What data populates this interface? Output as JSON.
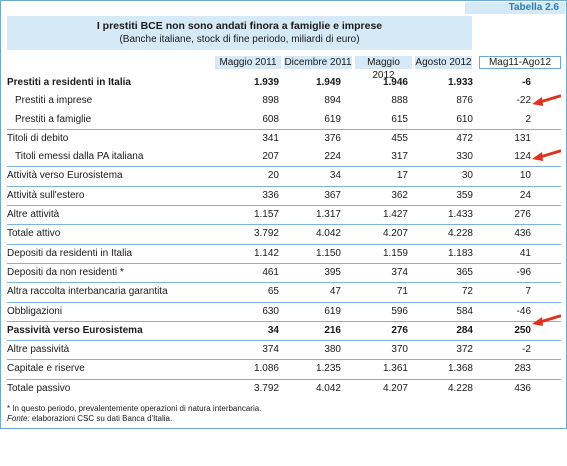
{
  "tag": "Tabella 2.6",
  "title": "I prestiti BCE non sono andati finora a famiglie e imprese",
  "subtitle": "(Banche italiane, stock di fine periodo, miliardi di euro)",
  "columns": [
    "Maggio 2011",
    "Dicembre 2011",
    "Maggio 2012",
    "Agosto 2012",
    "Mag11-Ago12"
  ],
  "rows": [
    {
      "label": "Prestiti a residenti in Italia",
      "v": [
        "1.939",
        "1.949",
        "1.946",
        "1.933",
        "-6"
      ],
      "bold": true,
      "indent": false,
      "sep": false
    },
    {
      "label": "Prestiti a imprese",
      "v": [
        "898",
        "894",
        "888",
        "876",
        "-22"
      ],
      "bold": false,
      "indent": true,
      "sep": false
    },
    {
      "label": "Prestiti a famiglie",
      "v": [
        "608",
        "619",
        "615",
        "610",
        "2"
      ],
      "bold": false,
      "indent": true,
      "sep": false
    },
    {
      "label": "Titoli di debito",
      "v": [
        "341",
        "376",
        "455",
        "472",
        "131"
      ],
      "bold": false,
      "indent": false,
      "sep": true
    },
    {
      "label": "Titoli emessi dalla PA italiana",
      "v": [
        "207",
        "224",
        "317",
        "330",
        "124"
      ],
      "bold": false,
      "indent": true,
      "sep": false
    },
    {
      "label": "Attività verso Eurosistema",
      "v": [
        "20",
        "34",
        "17",
        "30",
        "10"
      ],
      "bold": false,
      "indent": false,
      "sep": true
    },
    {
      "label": "Attività sull'estero",
      "v": [
        "336",
        "367",
        "362",
        "359",
        "24"
      ],
      "bold": false,
      "indent": false,
      "sep": true
    },
    {
      "label": "Altre attività",
      "v": [
        "1.157",
        "1.317",
        "1.427",
        "1.433",
        "276"
      ],
      "bold": false,
      "indent": false,
      "sep": true
    },
    {
      "label": "Totale attivo",
      "v": [
        "3.792",
        "4.042",
        "4.207",
        "4.228",
        "436"
      ],
      "bold": false,
      "indent": false,
      "sep": true
    },
    {
      "label": "Depositi da residenti in Italia",
      "v": [
        "1.142",
        "1.150",
        "1.159",
        "1.183",
        "41"
      ],
      "bold": false,
      "indent": false,
      "sep": true
    },
    {
      "label": "Depositi da non residenti *",
      "v": [
        "461",
        "395",
        "374",
        "365",
        "-96"
      ],
      "bold": false,
      "indent": false,
      "sep": true
    },
    {
      "label": "Altra raccolta interbancaria garantita",
      "v": [
        "65",
        "47",
        "71",
        "72",
        "7"
      ],
      "bold": false,
      "indent": false,
      "sep": true
    },
    {
      "label": "Obbligazioni",
      "v": [
        "630",
        "619",
        "596",
        "584",
        "-46"
      ],
      "bold": false,
      "indent": false,
      "sep": true
    },
    {
      "label": "Passività verso Eurosistema",
      "v": [
        "34",
        "216",
        "276",
        "284",
        "250"
      ],
      "bold": true,
      "indent": false,
      "sep": true
    },
    {
      "label": "Altre passività",
      "v": [
        "374",
        "380",
        "370",
        "372",
        "-2"
      ],
      "bold": false,
      "indent": false,
      "sep": true
    },
    {
      "label": "Capitale e riserve",
      "v": [
        "1.086",
        "1.235",
        "1.361",
        "1.368",
        "283"
      ],
      "bold": false,
      "indent": false,
      "sep": true
    },
    {
      "label": "Totale passivo",
      "v": [
        "3.792",
        "4.042",
        "4.207",
        "4.228",
        "436"
      ],
      "bold": false,
      "indent": false,
      "sep": true
    }
  ],
  "footnote": "* In questo periodo, prevalentemente operazioni di natura interbancaria.",
  "source_label": "Fonte:",
  "source_text": " elaborazioni CSC su dati Banca d'Italia.",
  "arrow_color": "#e0301e",
  "arrow_rows": [
    1,
    4,
    13
  ]
}
